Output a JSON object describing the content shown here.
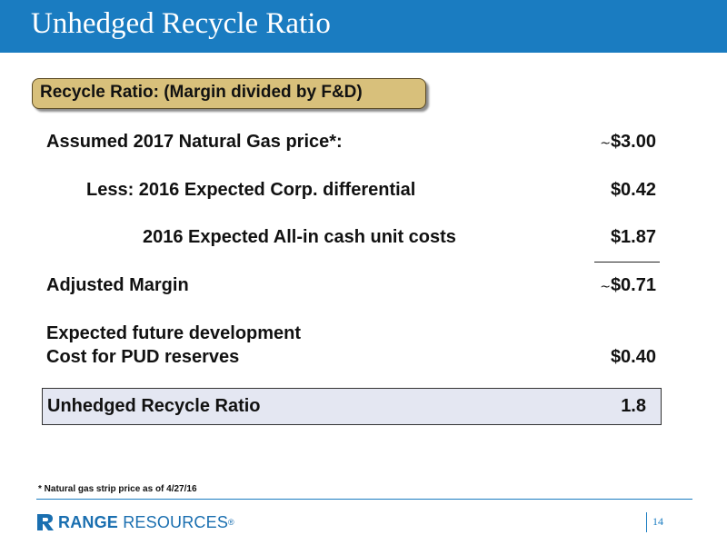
{
  "title": "Unhedged Recycle Ratio",
  "subtitle": "Recycle Ratio: (Margin divided by F&D)",
  "rows": [
    {
      "label": "Assumed 2017 Natural Gas price*:",
      "prefix": "~",
      "value": "$3.00"
    },
    {
      "label": "Less: 2016 Expected Corp. differential",
      "prefix": "",
      "value": "$0.42"
    },
    {
      "label": "2016 Expected All-in cash unit costs",
      "prefix": "",
      "value": "$1.87"
    },
    {
      "label": "Adjusted Margin",
      "prefix": "~",
      "value": "$0.71"
    },
    {
      "label_line1": "Expected future development",
      "label_line2": "Cost for PUD reserves",
      "prefix": "",
      "value": "$0.40"
    }
  ],
  "result": {
    "label": "Unhedged Recycle Ratio",
    "value": "1.8"
  },
  "footnote": "* Natural gas strip price as of 4/27/16",
  "footer": {
    "logo_part1": "RANGE",
    "logo_part2": "RESOURCES",
    "logo_reg": "®",
    "page_number": "14"
  },
  "colors": {
    "title_bar": "#1a7cc1",
    "subtitle_box": "#d8c07b",
    "result_box": "#e4e7f2",
    "brand": "#1a6fb0"
  }
}
